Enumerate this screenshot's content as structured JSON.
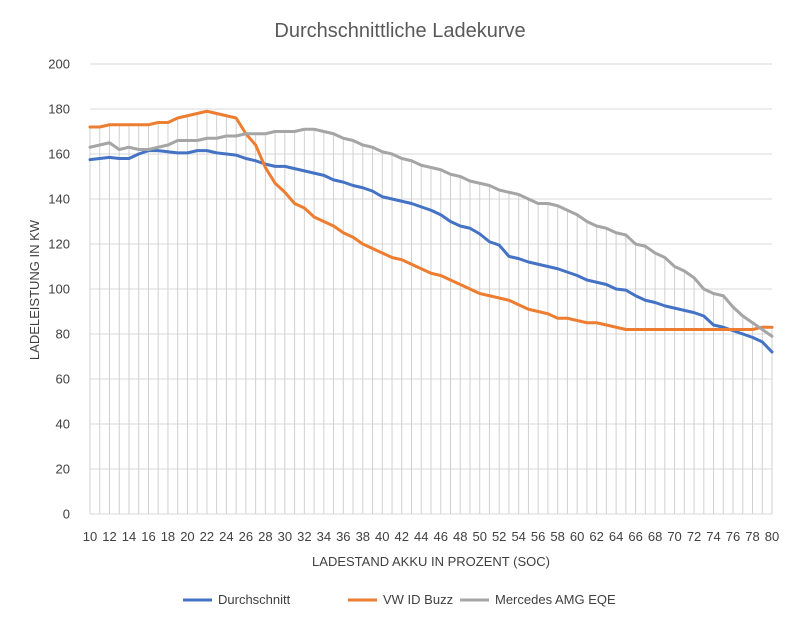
{
  "colors": {
    "durchschnitt": "#4472C4",
    "vw": "#ED7D31",
    "mercedes": "#A5A5A5",
    "grid": "#D9D9D9",
    "dropline": "#D0D0D0",
    "text": "#595959"
  },
  "chart_data": {
    "type": "line",
    "title": "Durchschnittliche Ladekurve",
    "xlabel": "LADESTAND AKKU IN PROZENT (SOC)",
    "ylabel": "LADELEISTUNG IN KW",
    "ylim": [
      0,
      200
    ],
    "yticks": [
      0,
      20,
      40,
      60,
      80,
      100,
      120,
      140,
      160,
      180,
      200
    ],
    "xlim": [
      10,
      80
    ],
    "xticks": [
      10,
      12,
      14,
      16,
      18,
      20,
      22,
      24,
      26,
      28,
      30,
      32,
      34,
      36,
      38,
      40,
      42,
      44,
      46,
      48,
      50,
      52,
      54,
      56,
      58,
      60,
      62,
      64,
      66,
      68,
      70,
      72,
      74,
      76,
      78,
      80
    ],
    "grid": "horizontal",
    "drop_lines": true,
    "legend_position": "bottom",
    "x": [
      10,
      11,
      12,
      13,
      14,
      15,
      16,
      17,
      18,
      19,
      20,
      21,
      22,
      23,
      24,
      25,
      26,
      27,
      28,
      29,
      30,
      31,
      32,
      33,
      34,
      35,
      36,
      37,
      38,
      39,
      40,
      41,
      42,
      43,
      44,
      45,
      46,
      47,
      48,
      49,
      50,
      51,
      52,
      53,
      54,
      55,
      56,
      57,
      58,
      59,
      60,
      61,
      62,
      63,
      64,
      65,
      66,
      67,
      68,
      69,
      70,
      71,
      72,
      73,
      74,
      75,
      76,
      77,
      78,
      79,
      80
    ],
    "series": [
      {
        "name": "Durchschnitt",
        "color_key": "durchschnitt",
        "values": [
          157.5,
          158,
          158.5,
          158,
          158,
          160,
          161.5,
          161.5,
          161,
          160.5,
          160.5,
          161.5,
          161.5,
          160.5,
          160,
          159.5,
          158,
          157,
          155.5,
          154.5,
          154.5,
          153.5,
          152.5,
          151.5,
          150.5,
          148.5,
          147.5,
          146,
          145,
          143.5,
          141,
          140,
          139,
          138,
          136.5,
          135,
          133,
          130,
          128,
          127,
          124.5,
          121,
          119.5,
          114.5,
          113.5,
          112,
          111,
          110,
          109,
          107.5,
          106,
          104,
          103,
          102,
          100,
          99.5,
          97,
          95,
          94,
          92.5,
          91.5,
          90.5,
          89.5,
          88,
          84,
          83,
          81.5,
          80,
          78.5,
          76.5,
          72
        ]
      },
      {
        "name": "VW ID Buzz",
        "color_key": "vw",
        "values": [
          172,
          172,
          173,
          173,
          173,
          173,
          173,
          174,
          174,
          176,
          177,
          178,
          179,
          178,
          177,
          176,
          169,
          164,
          154,
          147,
          143,
          138,
          136,
          132,
          130,
          128,
          125,
          123,
          120,
          118,
          116,
          114,
          113,
          111,
          109,
          107,
          106,
          104,
          102,
          100,
          98,
          97,
          96,
          95,
          93,
          91,
          90,
          89,
          87,
          87,
          86,
          85,
          85,
          84,
          83,
          82,
          82,
          82,
          82,
          82,
          82,
          82,
          82,
          82,
          82,
          82,
          82,
          82,
          82,
          83,
          83
        ]
      },
      {
        "name": "Mercedes AMG EQE",
        "color_key": "mercedes",
        "values": [
          163,
          164,
          165,
          162,
          163,
          162,
          162,
          163,
          164,
          166,
          166,
          166,
          167,
          167,
          168,
          168,
          169,
          169,
          169,
          170,
          170,
          170,
          171,
          171,
          170,
          169,
          167,
          166,
          164,
          163,
          161,
          160,
          158,
          157,
          155,
          154,
          153,
          151,
          150,
          148,
          147,
          146,
          144,
          143,
          142,
          140,
          138,
          138,
          137,
          135,
          133,
          130,
          128,
          127,
          125,
          124,
          120,
          119,
          116,
          114,
          110,
          108,
          105,
          100,
          98,
          97,
          92,
          88,
          85,
          82,
          79
        ]
      }
    ]
  }
}
